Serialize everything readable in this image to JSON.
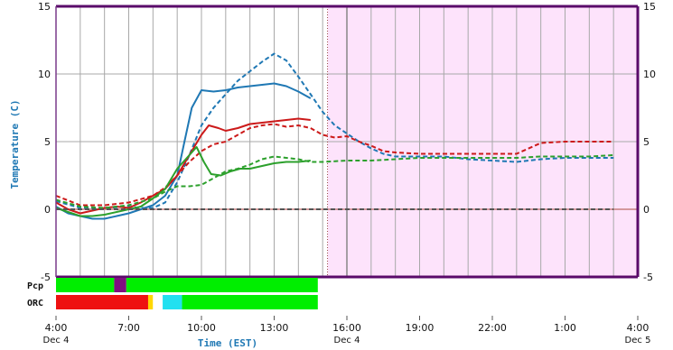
{
  "chart_data": {
    "type": "line",
    "xlabel": "Time (EST)",
    "ylabel": "Temperature (C)",
    "ylim": [
      -5,
      15
    ],
    "yticks": [
      -5,
      0,
      5,
      10,
      15
    ],
    "xlim": [
      4,
      28
    ],
    "xticks": [
      {
        "x": 4,
        "label": "4:00",
        "date": "Dec 4"
      },
      {
        "x": 7,
        "label": "7:00",
        "date": ""
      },
      {
        "x": 10,
        "label": "10:00",
        "date": ""
      },
      {
        "x": 13,
        "label": "13:00",
        "date": ""
      },
      {
        "x": 16,
        "label": "16:00",
        "date": "Dec 4"
      },
      {
        "x": 19,
        "label": "19:00",
        "date": ""
      },
      {
        "x": 22,
        "label": "22:00",
        "date": ""
      },
      {
        "x": 25,
        "label": "1:00",
        "date": ""
      },
      {
        "x": 28,
        "label": "4:00",
        "date": "Dec 5"
      }
    ],
    "grid": true,
    "forecast_shade": {
      "from": 15.2,
      "to": 28,
      "color": "#fde3fb"
    },
    "now_marker": 15.2,
    "zero_line_color": "#c87f7f",
    "series": [
      {
        "color": "#1f78b4",
        "style": "solid",
        "points": [
          [
            4,
            0.2
          ],
          [
            4.5,
            -0.3
          ],
          [
            5,
            -0.5
          ],
          [
            5.5,
            -0.7
          ],
          [
            6,
            -0.7
          ],
          [
            6.5,
            -0.5
          ],
          [
            7,
            -0.3
          ],
          [
            7.5,
            0
          ],
          [
            8,
            0.3
          ],
          [
            8.5,
            1
          ],
          [
            9,
            2.5
          ],
          [
            9.3,
            5
          ],
          [
            9.6,
            7.5
          ],
          [
            10,
            8.8
          ],
          [
            10.5,
            8.7
          ],
          [
            11,
            8.8
          ],
          [
            11.5,
            9
          ],
          [
            12,
            9.1
          ],
          [
            12.5,
            9.2
          ],
          [
            13,
            9.3
          ],
          [
            13.5,
            9.1
          ],
          [
            14,
            8.7
          ],
          [
            14.5,
            8.2
          ]
        ]
      },
      {
        "color": "#1f78b4",
        "style": "dashed",
        "points": [
          [
            4,
            0.6
          ],
          [
            5,
            0.1
          ],
          [
            6,
            0.1
          ],
          [
            7,
            0.2
          ],
          [
            7.5,
            0.1
          ],
          [
            8,
            0.1
          ],
          [
            8.5,
            0.5
          ],
          [
            9,
            2
          ],
          [
            9.5,
            4
          ],
          [
            10,
            6.2
          ],
          [
            10.5,
            7.5
          ],
          [
            11,
            8.5
          ],
          [
            11.5,
            9.5
          ],
          [
            12,
            10.2
          ],
          [
            12.5,
            10.9
          ],
          [
            13,
            11.5
          ],
          [
            13.5,
            11
          ],
          [
            14,
            9.8
          ],
          [
            14.5,
            8.5
          ],
          [
            15,
            7.2
          ],
          [
            15.5,
            6.2
          ],
          [
            16,
            5.6
          ],
          [
            16.5,
            5
          ],
          [
            17,
            4.5
          ],
          [
            17.5,
            4.1
          ],
          [
            18,
            3.9
          ],
          [
            19,
            3.9
          ],
          [
            20,
            3.9
          ],
          [
            21,
            3.7
          ],
          [
            22,
            3.6
          ],
          [
            23,
            3.5
          ],
          [
            24,
            3.7
          ],
          [
            25,
            3.8
          ],
          [
            27,
            3.8
          ]
        ]
      },
      {
        "color": "#cc1a1a",
        "style": "solid",
        "points": [
          [
            4,
            0.5
          ],
          [
            4.5,
            0
          ],
          [
            5,
            -0.3
          ],
          [
            5.5,
            -0.1
          ],
          [
            6,
            0.1
          ],
          [
            6.5,
            0.2
          ],
          [
            7,
            0.1
          ],
          [
            7.5,
            0.5
          ],
          [
            8,
            1
          ],
          [
            8.5,
            1.5
          ],
          [
            9,
            2.5
          ],
          [
            9.5,
            4
          ],
          [
            10,
            5.5
          ],
          [
            10.3,
            6.2
          ],
          [
            10.7,
            6
          ],
          [
            11,
            5.8
          ],
          [
            11.5,
            6
          ],
          [
            12,
            6.3
          ],
          [
            12.5,
            6.4
          ],
          [
            13,
            6.5
          ],
          [
            13.5,
            6.6
          ],
          [
            14,
            6.7
          ],
          [
            14.5,
            6.6
          ]
        ]
      },
      {
        "color": "#cc1a1a",
        "style": "dashed",
        "points": [
          [
            4,
            1
          ],
          [
            5,
            0.3
          ],
          [
            6,
            0.3
          ],
          [
            7,
            0.5
          ],
          [
            8,
            1
          ],
          [
            8.5,
            1.6
          ],
          [
            9,
            2.5
          ],
          [
            9.5,
            3.5
          ],
          [
            10,
            4.3
          ],
          [
            10.5,
            4.8
          ],
          [
            11,
            5
          ],
          [
            11.5,
            5.5
          ],
          [
            12,
            6
          ],
          [
            12.5,
            6.2
          ],
          [
            13,
            6.3
          ],
          [
            13.5,
            6.1
          ],
          [
            14,
            6.2
          ],
          [
            14.5,
            6
          ],
          [
            15,
            5.5
          ],
          [
            15.5,
            5.3
          ],
          [
            16,
            5.4
          ],
          [
            16.5,
            5
          ],
          [
            17,
            4.7
          ],
          [
            17.5,
            4.3
          ],
          [
            18,
            4.2
          ],
          [
            19,
            4.1
          ],
          [
            20,
            4.1
          ],
          [
            21,
            4.1
          ],
          [
            22,
            4.1
          ],
          [
            23,
            4.1
          ],
          [
            24,
            4.9
          ],
          [
            25,
            5
          ],
          [
            26,
            5
          ],
          [
            27,
            5
          ]
        ]
      },
      {
        "color": "#2ca02c",
        "style": "solid",
        "points": [
          [
            4,
            0.1
          ],
          [
            4.5,
            -0.2
          ],
          [
            5,
            -0.5
          ],
          [
            5.5,
            -0.5
          ],
          [
            6,
            -0.4
          ],
          [
            6.5,
            -0.2
          ],
          [
            7,
            0
          ],
          [
            7.5,
            0.2
          ],
          [
            8,
            0.8
          ],
          [
            8.5,
            1.5
          ],
          [
            9,
            3
          ],
          [
            9.5,
            4
          ],
          [
            9.8,
            4.6
          ],
          [
            10.1,
            3.5
          ],
          [
            10.4,
            2.6
          ],
          [
            10.8,
            2.5
          ],
          [
            11.2,
            2.8
          ],
          [
            11.6,
            3
          ],
          [
            12,
            3
          ],
          [
            12.5,
            3.2
          ],
          [
            13,
            3.4
          ],
          [
            13.5,
            3.5
          ],
          [
            14,
            3.5
          ],
          [
            14.5,
            3.6
          ]
        ]
      },
      {
        "color": "#2ca02c",
        "style": "dashed",
        "points": [
          [
            4,
            0.7
          ],
          [
            5,
            0.2
          ],
          [
            6,
            0.1
          ],
          [
            7,
            0.3
          ],
          [
            8,
            0.8
          ],
          [
            8.5,
            1.3
          ],
          [
            9,
            1.7
          ],
          [
            9.5,
            1.7
          ],
          [
            10,
            1.8
          ],
          [
            10.5,
            2.3
          ],
          [
            11,
            2.8
          ],
          [
            11.5,
            3
          ],
          [
            12,
            3.3
          ],
          [
            12.5,
            3.7
          ],
          [
            13,
            3.9
          ],
          [
            13.5,
            3.8
          ],
          [
            14,
            3.7
          ],
          [
            14.5,
            3.5
          ],
          [
            15,
            3.5
          ],
          [
            16,
            3.6
          ],
          [
            17,
            3.6
          ],
          [
            18,
            3.7
          ],
          [
            19,
            3.8
          ],
          [
            20,
            3.8
          ],
          [
            21,
            3.8
          ],
          [
            22,
            3.8
          ],
          [
            23,
            3.8
          ],
          [
            24,
            3.9
          ],
          [
            25,
            3.9
          ],
          [
            26,
            3.9
          ],
          [
            27,
            4
          ]
        ]
      },
      {
        "color": "#555555",
        "style": "dashed",
        "points": [
          [
            4,
            0
          ],
          [
            27,
            0
          ]
        ]
      }
    ],
    "strips": [
      {
        "label": "Pcp",
        "segments": [
          {
            "from": 4,
            "to": 6.4,
            "color": "#00ee00"
          },
          {
            "from": 6.4,
            "to": 6.9,
            "color": "#7f1080"
          },
          {
            "from": 6.9,
            "to": 14.8,
            "color": "#00ee00"
          }
        ]
      },
      {
        "label": "ORC",
        "segments": [
          {
            "from": 4,
            "to": 7.8,
            "color": "#ee1111"
          },
          {
            "from": 7.8,
            "to": 8.0,
            "color": "#ffd700"
          },
          {
            "from": 8.0,
            "to": 8.4,
            "color": "#ffffff"
          },
          {
            "from": 8.4,
            "to": 9.2,
            "color": "#22e0f0"
          },
          {
            "from": 9.2,
            "to": 14.8,
            "color": "#00ee00"
          }
        ]
      }
    ],
    "frame_color": "#5a0a6a"
  }
}
